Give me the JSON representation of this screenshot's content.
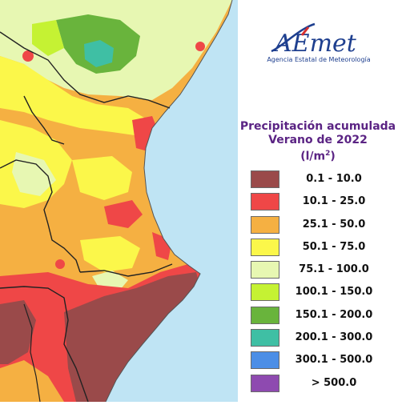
{
  "logo": {
    "mark": "AEmet",
    "agency_name": "Agencia Estatal de Meteorología"
  },
  "title": {
    "line1": "Precipitación acumulada",
    "line2": "Verano de 2022",
    "unit_prefix": "(l/m",
    "unit_exp": "2",
    "unit_suffix": ")"
  },
  "legend": [
    {
      "label": "0.1 - 10.0",
      "color": "#9a4a4a"
    },
    {
      "label": "10.1 - 25.0",
      "color": "#ef4747"
    },
    {
      "label": "25.1 - 50.0",
      "color": "#f5b042"
    },
    {
      "label": "50.1 - 75.0",
      "color": "#fbf74a"
    },
    {
      "label": "75.1 - 100.0",
      "color": "#e7f7b2"
    },
    {
      "label": "100.1 - 150.0",
      "color": "#c5f233"
    },
    {
      "label": "150.1 - 200.0",
      "color": "#69b43c"
    },
    {
      "label": "200.1 - 300.0",
      "color": "#3fbfa4"
    },
    {
      "label": "300.1 - 500.0",
      "color": "#4c8ee6"
    },
    {
      "label": "> 500.0",
      "color": "#8e4ab0"
    }
  ],
  "map_colors": {
    "sea": "#bfe4f4",
    "brown": "#9a4a4a",
    "red": "#ef4747",
    "orange": "#f5b042",
    "yellow": "#fbf74a",
    "pale": "#e7f7b2",
    "lime": "#c5f233",
    "green": "#69b43c",
    "teal": "#3fbfa4"
  }
}
